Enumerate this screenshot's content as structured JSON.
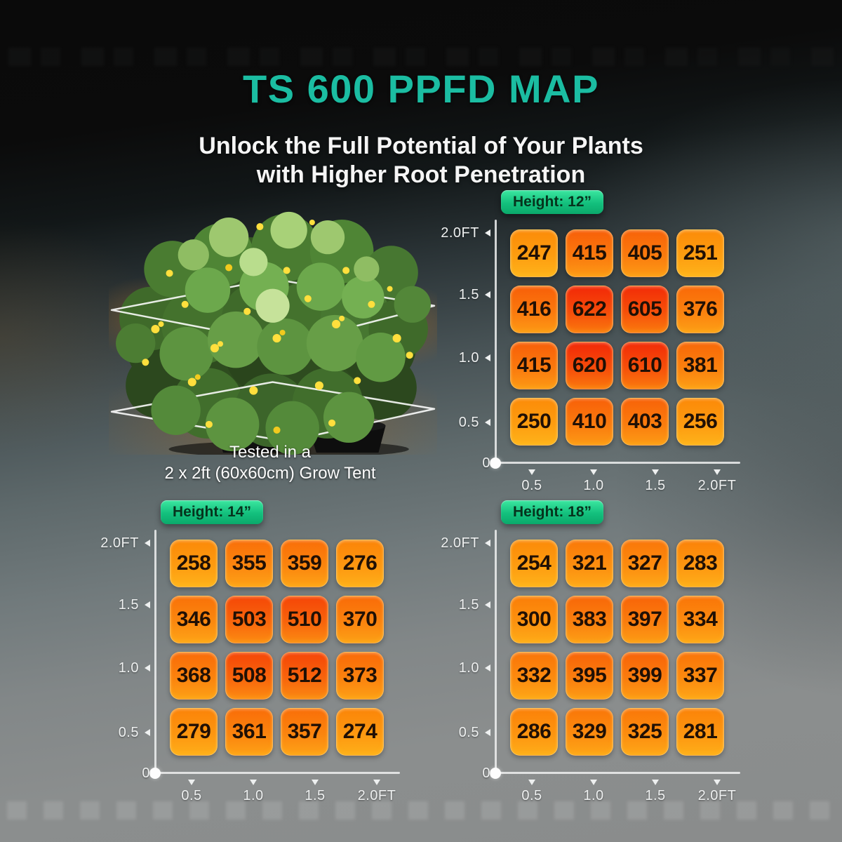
{
  "header": {
    "title": "TS 600 PPFD MAP",
    "subtitle_line1": "Unlock the Full Potential of Your Plants",
    "subtitle_line2": "with Higher Root Penetration"
  },
  "plant": {
    "caption_line1": "Tested in a",
    "caption_line2": "2 x 2ft (60x60cm) Grow Tent"
  },
  "colors": {
    "title_teal": "#1bbda2",
    "badge_green_top": "#3ce7a1",
    "badge_green_bottom": "#0ba96b",
    "badge_text": "#06331d",
    "cell_low_top": "#fc8b08",
    "cell_low_bottom": "#ffb31a",
    "cell_high_top": "#f22807",
    "cell_high_bottom": "#fa780e",
    "cell_value_text": "#201005",
    "axis_color": "#eef0f0"
  },
  "chart_data": [
    {
      "type": "heatmap",
      "title": "Height: 12”",
      "x_ticks": [
        "0.5",
        "1.0",
        "1.5",
        "2.0FT"
      ],
      "y_ticks": [
        "2.0FT",
        "1.5",
        "1.0",
        "0.5",
        "0"
      ],
      "x_range_ft": [
        0,
        2.0
      ],
      "y_range_ft": [
        0,
        2.0
      ],
      "values_by_row": [
        [
          247,
          415,
          405,
          251
        ],
        [
          416,
          622,
          605,
          376
        ],
        [
          415,
          620,
          610,
          381
        ],
        [
          250,
          410,
          403,
          256
        ]
      ]
    },
    {
      "type": "heatmap",
      "title": "Height: 14”",
      "x_ticks": [
        "0.5",
        "1.0",
        "1.5",
        "2.0FT"
      ],
      "y_ticks": [
        "2.0FT",
        "1.5",
        "1.0",
        "0.5",
        "0"
      ],
      "x_range_ft": [
        0,
        2.0
      ],
      "y_range_ft": [
        0,
        2.0
      ],
      "values_by_row": [
        [
          258,
          355,
          359,
          276
        ],
        [
          346,
          503,
          510,
          370
        ],
        [
          368,
          508,
          512,
          373
        ],
        [
          279,
          361,
          357,
          274
        ]
      ]
    },
    {
      "type": "heatmap",
      "title": "Height: 18”",
      "x_ticks": [
        "0.5",
        "1.0",
        "1.5",
        "2.0FT"
      ],
      "y_ticks": [
        "2.0FT",
        "1.5",
        "1.0",
        "0.5",
        "0"
      ],
      "x_range_ft": [
        0,
        2.0
      ],
      "y_range_ft": [
        0,
        2.0
      ],
      "values_by_row": [
        [
          254,
          321,
          327,
          283
        ],
        [
          300,
          383,
          397,
          334
        ],
        [
          332,
          395,
          399,
          337
        ],
        [
          286,
          329,
          325,
          281
        ]
      ]
    }
  ]
}
